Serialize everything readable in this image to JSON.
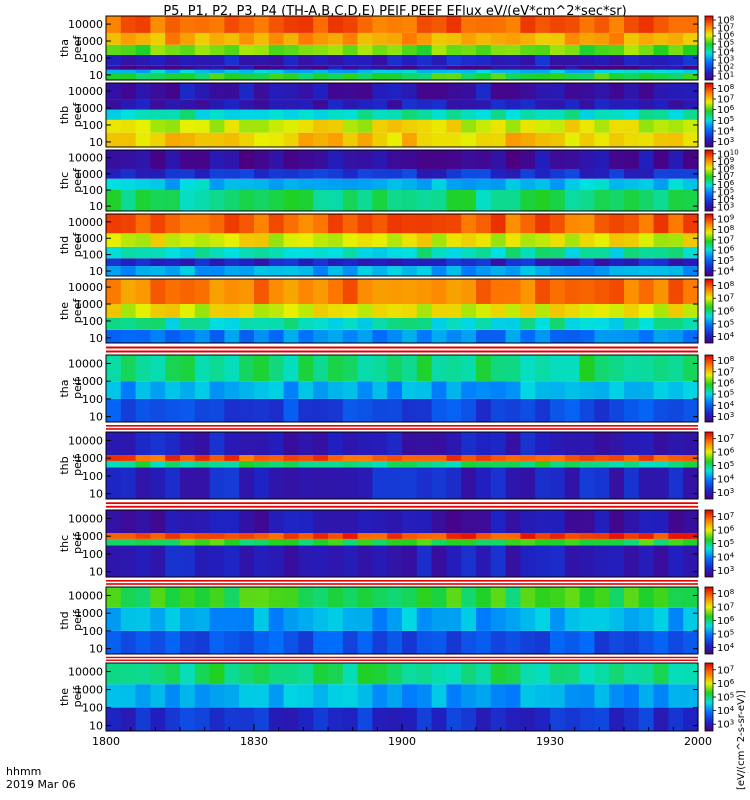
{
  "chart_data": {
    "type": "heatmap",
    "title": "P5, P1, P2, P3, P4 (TH-A,B,C,D,E) PEIF,PEEF EFlux eV/(eV*cm^2*sec*sr)",
    "x_axis": {
      "label": "hhmm",
      "date": "2019 Mar 06",
      "range": [
        "1800",
        "2000"
      ],
      "ticks": [
        "1800",
        "1830",
        "1900",
        "1930",
        "2000"
      ],
      "minor_ticks_per_interval": 6
    },
    "y_axis": {
      "scale": "log",
      "range": [
        5,
        30000
      ],
      "ticks": [
        "10",
        "100",
        "1000",
        "10000"
      ]
    },
    "colorbar": {
      "scale": "log",
      "label": "[eV/(cm^2-s-sr-eV)]",
      "colormap": "rainbow (purple-blue-cyan-green-yellow-red)"
    },
    "panels": [
      {
        "id": "tha_peef",
        "label": [
          "tha",
          "peef"
        ],
        "colorbar_ticks": [
          "10^1",
          "10^2",
          "10^3",
          "10^4",
          "10^5",
          "10^6",
          "10^7",
          "10^8"
        ],
        "bands": [
          {
            "e_low": 5,
            "e_high": 13,
            "level": 0.55
          },
          {
            "e_low": 13,
            "e_high": 20,
            "level": 0.38
          },
          {
            "e_low": 20,
            "e_high": 35,
            "level": 0.05
          },
          {
            "e_low": 35,
            "e_high": 150,
            "level": 0.12
          },
          {
            "e_low": 150,
            "e_high": 600,
            "level": 0.6
          },
          {
            "e_low": 600,
            "e_high": 3000,
            "level": 0.8
          },
          {
            "e_low": 3000,
            "e_high": 30000,
            "level": 0.88
          }
        ]
      },
      {
        "id": "thb_peef",
        "label": [
          "thb",
          "peef"
        ],
        "colorbar_ticks": [
          "10^3",
          "10^4",
          "10^5",
          "10^6",
          "10^7",
          "10^8"
        ],
        "bands": [
          {
            "e_low": 5,
            "e_high": 35,
            "level": 0.75
          },
          {
            "e_low": 35,
            "e_high": 200,
            "level": 0.7
          },
          {
            "e_low": 200,
            "e_high": 800,
            "level": 0.45
          },
          {
            "e_low": 800,
            "e_high": 3000,
            "level": 0.1
          },
          {
            "e_low": 3000,
            "e_high": 30000,
            "level": 0.08
          }
        ]
      },
      {
        "id": "thc_peef",
        "label": [
          "thc",
          "peef"
        ],
        "colorbar_ticks": [
          "10^3",
          "10^4",
          "10^5",
          "10^6",
          "10^7",
          "10^8",
          "10^9",
          "10^10"
        ],
        "bands": [
          {
            "e_low": 5,
            "e_high": 100,
            "level": 0.5
          },
          {
            "e_low": 100,
            "e_high": 500,
            "level": 0.38
          },
          {
            "e_low": 500,
            "e_high": 2000,
            "level": 0.15
          },
          {
            "e_low": 2000,
            "e_high": 30000,
            "level": 0.06
          }
        ]
      },
      {
        "id": "thd_peef",
        "label": [
          "thd",
          "peef"
        ],
        "colorbar_ticks": [
          "10^4",
          "10^5",
          "10^6",
          "10^7",
          "10^8",
          "10^9"
        ],
        "bands": [
          {
            "e_low": 5,
            "e_high": 20,
            "level": 0.35
          },
          {
            "e_low": 20,
            "e_high": 60,
            "level": 0.12
          },
          {
            "e_low": 60,
            "e_high": 300,
            "level": 0.45
          },
          {
            "e_low": 300,
            "e_high": 2000,
            "level": 0.7
          },
          {
            "e_low": 2000,
            "e_high": 30000,
            "level": 0.88
          }
        ]
      },
      {
        "id": "the_peef",
        "label": [
          "the",
          "peef"
        ],
        "colorbar_ticks": [
          "10^4",
          "10^5",
          "10^6",
          "10^7",
          "10^8"
        ],
        "bands": [
          {
            "e_low": 5,
            "e_high": 30,
            "level": 0.3
          },
          {
            "e_low": 30,
            "e_high": 150,
            "level": 0.45
          },
          {
            "e_low": 150,
            "e_high": 1000,
            "level": 0.7
          },
          {
            "e_low": 1000,
            "e_high": 30000,
            "level": 0.85
          }
        ]
      },
      {
        "id": "tha_peif",
        "label": [
          "tha",
          "peif"
        ],
        "colorbar_ticks": [
          "10^3",
          "10^4",
          "10^5",
          "10^6",
          "10^7",
          "10^8"
        ],
        "bands": [
          {
            "e_low": 5,
            "e_high": 100,
            "level": 0.2
          },
          {
            "e_low": 100,
            "e_high": 1000,
            "level": 0.35
          },
          {
            "e_low": 1000,
            "e_high": 30000,
            "level": 0.5
          }
        ]
      },
      {
        "id": "thb_peif",
        "label": [
          "thb",
          "peif"
        ],
        "colorbar_ticks": [
          "10^3",
          "10^4",
          "10^5",
          "10^6",
          "10^7"
        ],
        "bands": [
          {
            "e_low": 5,
            "e_high": 300,
            "level": 0.12
          },
          {
            "e_low": 300,
            "e_high": 700,
            "level": 0.5
          },
          {
            "e_low": 700,
            "e_high": 1500,
            "level": 0.9
          },
          {
            "e_low": 1500,
            "e_high": 30000,
            "level": 0.1
          }
        ]
      },
      {
        "id": "thc_peif",
        "label": [
          "thc",
          "peif"
        ],
        "colorbar_ticks": [
          "10^3",
          "10^4",
          "10^5",
          "10^6",
          "10^7"
        ],
        "bands": [
          {
            "e_low": 5,
            "e_high": 300,
            "level": 0.1
          },
          {
            "e_low": 300,
            "e_high": 700,
            "level": 0.55
          },
          {
            "e_low": 700,
            "e_high": 1500,
            "level": 0.92
          },
          {
            "e_low": 1500,
            "e_high": 30000,
            "level": 0.08
          }
        ]
      },
      {
        "id": "thd_peif",
        "label": [
          "thd",
          "peif"
        ],
        "colorbar_ticks": [
          "10^4",
          "10^5",
          "10^6",
          "10^7",
          "10^8"
        ],
        "bands": [
          {
            "e_low": 5,
            "e_high": 100,
            "level": 0.22
          },
          {
            "e_low": 100,
            "e_high": 2000,
            "level": 0.35
          },
          {
            "e_low": 2000,
            "e_high": 30000,
            "level": 0.55
          }
        ]
      },
      {
        "id": "the_peif",
        "label": [
          "the",
          "peif"
        ],
        "colorbar_ticks": [
          "10^3",
          "10^4",
          "10^5",
          "10^6",
          "10^7"
        ],
        "bands": [
          {
            "e_low": 5,
            "e_high": 100,
            "level": 0.15
          },
          {
            "e_low": 100,
            "e_high": 2000,
            "level": 0.35
          },
          {
            "e_low": 2000,
            "e_high": 30000,
            "level": 0.5
          }
        ]
      }
    ]
  }
}
